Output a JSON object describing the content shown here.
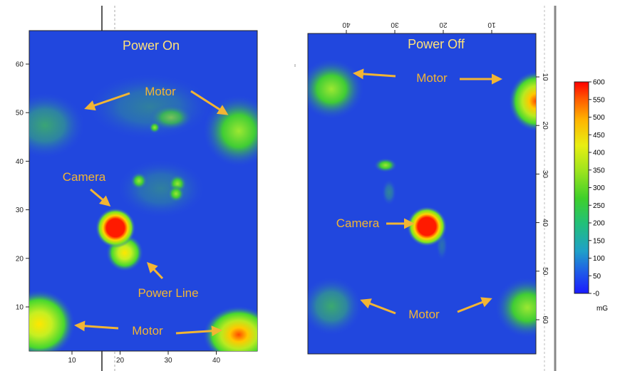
{
  "chart_data": [
    {
      "type": "heatmap",
      "title": "Power On",
      "x_ticks": [
        10,
        20,
        30,
        40
      ],
      "y_ticks": [
        10,
        20,
        30,
        40,
        50,
        60
      ],
      "xlim": [
        1,
        48
      ],
      "ylim": [
        1,
        68
      ],
      "annotations": [
        {
          "text": "Motor",
          "x": 25,
          "y": 55
        },
        {
          "text": "Camera",
          "x": 8,
          "y": 37
        },
        {
          "text": "Power Line",
          "x": 30,
          "y": 13
        },
        {
          "text": "Motor",
          "x": 24,
          "y": 5
        }
      ],
      "hotspots": [
        {
          "label": "Camera",
          "x": 18.5,
          "y": 26.5,
          "value": 600
        },
        {
          "label": "Power Line",
          "x": 20.5,
          "y": 21,
          "value": 350
        },
        {
          "label": "Motor",
          "x": 44,
          "y": 4,
          "value": 520
        },
        {
          "label": "Motor",
          "x": 3,
          "y": 6,
          "value": 300
        },
        {
          "label": "Motor",
          "x": 44,
          "y": 48,
          "value": 260
        },
        {
          "label": "Motor",
          "x": 5,
          "y": 48,
          "value": 160
        }
      ]
    },
    {
      "type": "heatmap",
      "title": "Power Off",
      "x_ticks": [
        40,
        30,
        20,
        10
      ],
      "y_ticks": [
        10,
        20,
        30,
        40,
        50,
        60
      ],
      "annotations": [
        {
          "text": "Motor",
          "x": 27,
          "y": 10
        },
        {
          "text": "Camera",
          "x": 43,
          "y": 40
        },
        {
          "text": "Motor",
          "x": 28,
          "y": 58
        }
      ],
      "hotspots": [
        {
          "label": "Camera",
          "x": 26,
          "y": 40,
          "value": 600
        },
        {
          "label": "Motor",
          "x": 49,
          "y": 12,
          "value": 230
        },
        {
          "label": "Motor",
          "x": 3,
          "y": 15,
          "value": 500
        },
        {
          "label": "Motor",
          "x": 49,
          "y": 56,
          "value": 170
        },
        {
          "label": "Motor",
          "x": 3,
          "y": 58,
          "value": 250
        }
      ]
    }
  ],
  "colorbar": {
    "ticks": [
      "600",
      "550",
      "500",
      "450",
      "400",
      "350",
      "300",
      "250",
      "200",
      "150",
      "100",
      "50",
      "-0"
    ],
    "unit": "mG",
    "range": [
      0,
      600
    ]
  },
  "colors": {
    "background": "#1f3de0",
    "low": "#1e3ddd",
    "mid": "#3ccc2c",
    "high": "#f2e400",
    "max": "#e00000",
    "annotation": "#f2b534"
  }
}
